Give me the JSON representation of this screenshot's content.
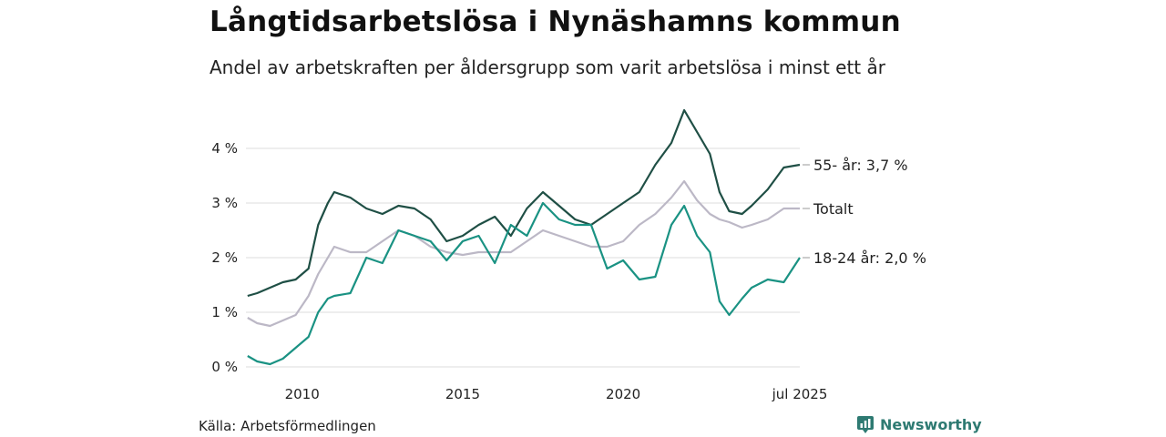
{
  "title": "Långtidsarbetslösa i Nynäshamns kommun",
  "subtitle": "Andel av arbetskraften per åldersgrupp som varit arbetslösa i minst ett år",
  "source": "Källa: Arbetsförmedlingen",
  "brand": {
    "name": "Newsworthy",
    "icon": "newsworthy-logo-icon",
    "color": "#2e7a72"
  },
  "chart_data": {
    "type": "line",
    "ylim": [
      0,
      4
    ],
    "xlim": [
      2008.25,
      2025.5
    ],
    "y_ticks": [
      0,
      1,
      2,
      3,
      4
    ],
    "y_tick_labels": [
      "0 %",
      "1 %",
      "2 %",
      "3 %",
      "4 %"
    ],
    "x_ticks": [
      2010,
      2015,
      2020,
      2025.5
    ],
    "x_tick_labels": [
      "2010",
      "2015",
      "2020",
      "jul 2025"
    ],
    "grid": true,
    "legend": "end-labels on right",
    "series": [
      {
        "name": "55- år",
        "end_label": "55- år: 3,7 %",
        "color": "#1f4f45",
        "x": [
          2008.3,
          2008.6,
          2009.0,
          2009.4,
          2009.8,
          2010.2,
          2010.5,
          2010.8,
          2011.0,
          2011.5,
          2012.0,
          2012.5,
          2013.0,
          2013.5,
          2014.0,
          2014.5,
          2015.0,
          2015.5,
          2016.0,
          2016.5,
          2017.0,
          2017.5,
          2018.0,
          2018.5,
          2019.0,
          2019.5,
          2020.0,
          2020.5,
          2021.0,
          2021.5,
          2021.9,
          2022.3,
          2022.7,
          2023.0,
          2023.3,
          2023.7,
          2024.0,
          2024.5,
          2025.0,
          2025.5
        ],
        "y": [
          1.3,
          1.35,
          1.45,
          1.55,
          1.6,
          1.8,
          2.6,
          3.0,
          3.2,
          3.1,
          2.9,
          2.8,
          2.95,
          2.9,
          2.7,
          2.3,
          2.4,
          2.6,
          2.75,
          2.4,
          2.9,
          3.2,
          2.95,
          2.7,
          2.6,
          2.8,
          3.0,
          3.2,
          3.7,
          4.1,
          4.7,
          4.3,
          3.9,
          3.2,
          2.85,
          2.8,
          2.95,
          3.25,
          3.65,
          3.7
        ]
      },
      {
        "name": "Totalt",
        "end_label": "Totalt",
        "color": "#bcb8c6",
        "x": [
          2008.3,
          2008.6,
          2009.0,
          2009.4,
          2009.8,
          2010.2,
          2010.5,
          2010.8,
          2011.0,
          2011.5,
          2012.0,
          2012.5,
          2013.0,
          2013.5,
          2014.0,
          2014.5,
          2015.0,
          2015.5,
          2016.0,
          2016.5,
          2017.0,
          2017.5,
          2018.0,
          2018.5,
          2019.0,
          2019.5,
          2020.0,
          2020.5,
          2021.0,
          2021.5,
          2021.9,
          2022.3,
          2022.7,
          2023.0,
          2023.3,
          2023.7,
          2024.0,
          2024.5,
          2025.0,
          2025.5
        ],
        "y": [
          0.9,
          0.8,
          0.75,
          0.85,
          0.95,
          1.3,
          1.7,
          2.0,
          2.2,
          2.1,
          2.1,
          2.3,
          2.5,
          2.4,
          2.2,
          2.1,
          2.05,
          2.1,
          2.1,
          2.1,
          2.3,
          2.5,
          2.4,
          2.3,
          2.2,
          2.2,
          2.3,
          2.6,
          2.8,
          3.1,
          3.4,
          3.05,
          2.8,
          2.7,
          2.65,
          2.55,
          2.6,
          2.7,
          2.9,
          2.9
        ]
      },
      {
        "name": "18-24 år",
        "end_label": "18-24 år: 2,0 %",
        "color": "#1a9283",
        "x": [
          2008.3,
          2008.6,
          2009.0,
          2009.4,
          2009.8,
          2010.2,
          2010.5,
          2010.8,
          2011.0,
          2011.5,
          2012.0,
          2012.5,
          2013.0,
          2013.5,
          2014.0,
          2014.5,
          2015.0,
          2015.5,
          2016.0,
          2016.5,
          2017.0,
          2017.5,
          2018.0,
          2018.5,
          2019.0,
          2019.5,
          2020.0,
          2020.5,
          2021.0,
          2021.5,
          2021.9,
          2022.3,
          2022.7,
          2023.0,
          2023.3,
          2023.7,
          2024.0,
          2024.5,
          2025.0,
          2025.5
        ],
        "y": [
          0.2,
          0.1,
          0.05,
          0.15,
          0.35,
          0.55,
          1.0,
          1.25,
          1.3,
          1.35,
          2.0,
          1.9,
          2.5,
          2.4,
          2.3,
          1.95,
          2.3,
          2.4,
          1.9,
          2.6,
          2.4,
          3.0,
          2.7,
          2.6,
          2.6,
          1.8,
          1.95,
          1.6,
          1.65,
          2.6,
          2.95,
          2.4,
          2.1,
          1.2,
          0.95,
          1.25,
          1.45,
          1.6,
          1.55,
          2.0
        ]
      }
    ]
  }
}
